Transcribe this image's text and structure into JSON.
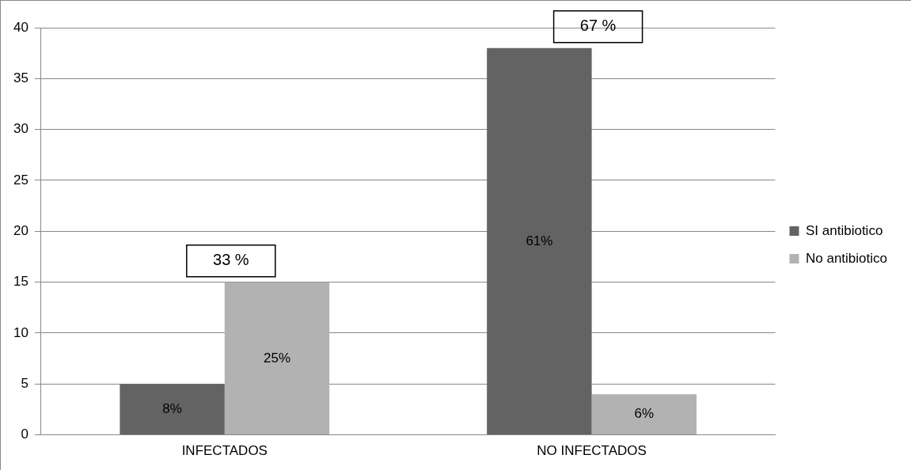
{
  "chart_data": {
    "type": "bar",
    "categories": [
      "INFECTADOS",
      "NO INFECTADOS"
    ],
    "series": [
      {
        "name": "SI antibiotico",
        "color": "#636363",
        "values": [
          5,
          38
        ]
      },
      {
        "name": "No antibiotico",
        "color": "#b2b2b2",
        "values": [
          15,
          4
        ]
      }
    ],
    "ylim": [
      0,
      40
    ],
    "yticks": [
      0,
      5,
      10,
      15,
      20,
      25,
      30,
      35,
      40
    ],
    "grid": "y",
    "legend": "right",
    "annotations": [
      "33 %",
      "67 %",
      "8%",
      "25%",
      "61%",
      "6%"
    ]
  }
}
